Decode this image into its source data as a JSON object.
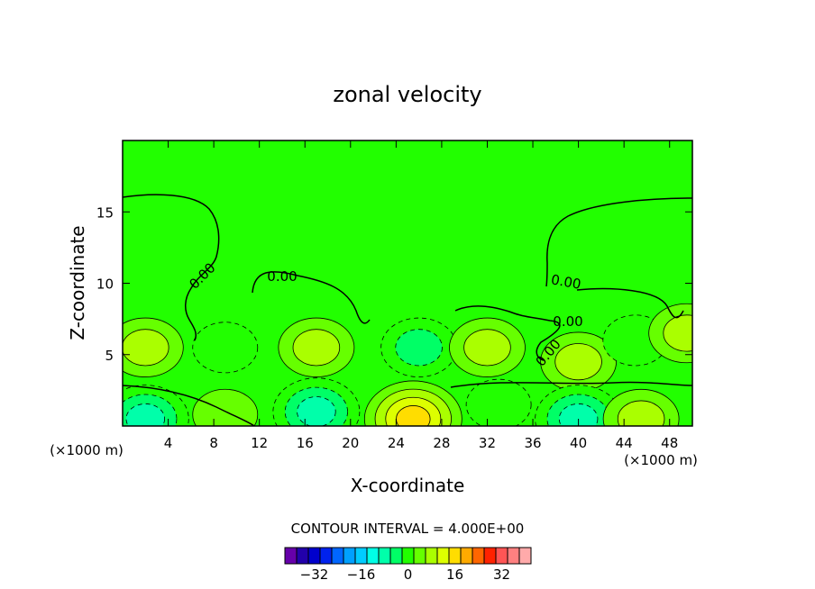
{
  "chart_data": {
    "type": "heatmap",
    "title": "zonal velocity",
    "xlabel": "X-coordinate",
    "ylabel": "Z-coordinate",
    "x_unit_label": "(×1000 m)",
    "x_unit_label_right": "(×1000 m)",
    "xlim": [
      0,
      50
    ],
    "ylim": [
      0,
      20
    ],
    "x_ticks": [
      4,
      8,
      12,
      16,
      20,
      24,
      28,
      32,
      36,
      40,
      44,
      48
    ],
    "y_ticks": [
      5,
      10,
      15
    ],
    "contour_interval_text": "CONTOUR INTERVAL = 4.000E+00",
    "contour_zero_label": "0.00",
    "zero_label_count": 5,
    "colorbar": {
      "colors": [
        "#6600aa",
        "#2200aa",
        "#0000cc",
        "#0022ee",
        "#0066ff",
        "#00a0ff",
        "#00ccff",
        "#00ffe6",
        "#00ffaa",
        "#00ff66",
        "#22ff00",
        "#66ff00",
        "#aaff00",
        "#ddff00",
        "#ffdd00",
        "#ffaa00",
        "#ff6600",
        "#ff2200",
        "#ff5555",
        "#ff8080",
        "#ffaaaa"
      ],
      "tick_labels": [
        "-32",
        "-16",
        "0",
        "16",
        "32"
      ],
      "tick_values": [
        -32,
        -16,
        0,
        16,
        32
      ],
      "vmin": -42,
      "vmax": 42
    },
    "background_value": 0,
    "features": [
      {
        "x": 2,
        "z": 5.5,
        "value": 8
      },
      {
        "x": 9,
        "z": 5.5,
        "value": -4
      },
      {
        "x": 17,
        "z": 5.5,
        "value": 8
      },
      {
        "x": 26,
        "z": 5.5,
        "value": -8
      },
      {
        "x": 32,
        "z": 5.5,
        "value": 8
      },
      {
        "x": 40,
        "z": 4.5,
        "value": 8
      },
      {
        "x": 45,
        "z": 6,
        "value": -4
      },
      {
        "x": 49.5,
        "z": 6.5,
        "value": 8
      },
      {
        "x": 2,
        "z": 0.5,
        "value": -12
      },
      {
        "x": 9,
        "z": 0.8,
        "value": 4
      },
      {
        "x": 17,
        "z": 1,
        "value": -12
      },
      {
        "x": 25.5,
        "z": 0.5,
        "value": 16
      },
      {
        "x": 33,
        "z": 1.5,
        "value": -4
      },
      {
        "x": 40,
        "z": 0.5,
        "value": -12
      },
      {
        "x": 45.5,
        "z": 0.5,
        "value": 8
      }
    ]
  }
}
